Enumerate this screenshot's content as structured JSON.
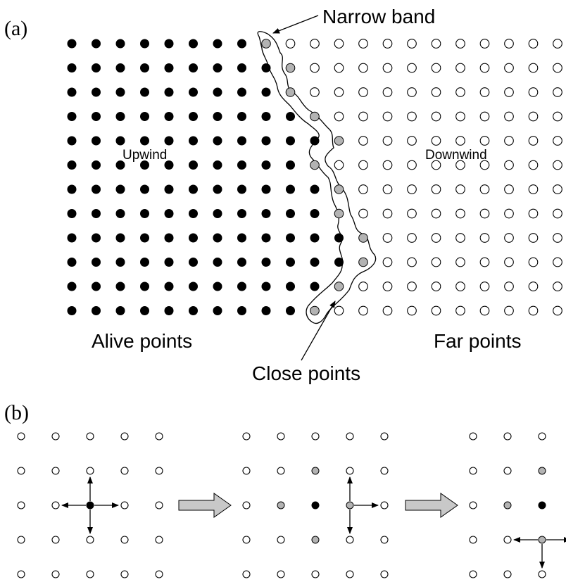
{
  "panels": {
    "a": {
      "label": "(a)",
      "grid": {
        "rows": 12,
        "cols": 21
      },
      "close_col_by_row": [
        8,
        9,
        9,
        10,
        11,
        10,
        11,
        11,
        12,
        12,
        11,
        10
      ],
      "text": {
        "narrow_band": "Narrow band",
        "upwind": "Upwind",
        "downwind": "Downwind",
        "alive": "Alive points",
        "far": "Far points",
        "close": "Close points"
      }
    },
    "b": {
      "label": "(b)",
      "steps": [
        {
          "grid": {
            "rows": 5,
            "cols": 5
          },
          "alive": [
            [
              2,
              2
            ]
          ],
          "close": [],
          "active": [
            2,
            2
          ],
          "arrows": [
            "up",
            "down",
            "left",
            "right"
          ]
        },
        {
          "grid": {
            "rows": 5,
            "cols": 5
          },
          "alive": [
            [
              2,
              2
            ]
          ],
          "close": [
            [
              1,
              2
            ],
            [
              2,
              1
            ],
            [
              3,
              2
            ]
          ],
          "active": [
            2,
            3
          ],
          "arrows": [
            "up",
            "down",
            "right"
          ]
        },
        {
          "grid": {
            "rows": 5,
            "cols": 3
          },
          "alive": [
            [
              2,
              2
            ]
          ],
          "close": [
            [
              1,
              2
            ],
            [
              2,
              1
            ]
          ],
          "active": [
            3,
            2
          ],
          "arrows": [
            "down",
            "left",
            "right"
          ]
        }
      ]
    }
  },
  "colors": {
    "alive": "#000000",
    "close": "#b3b3b3",
    "far": "#ffffff",
    "stroke": "#000000",
    "transition_arrow": "#c8c8c8"
  }
}
